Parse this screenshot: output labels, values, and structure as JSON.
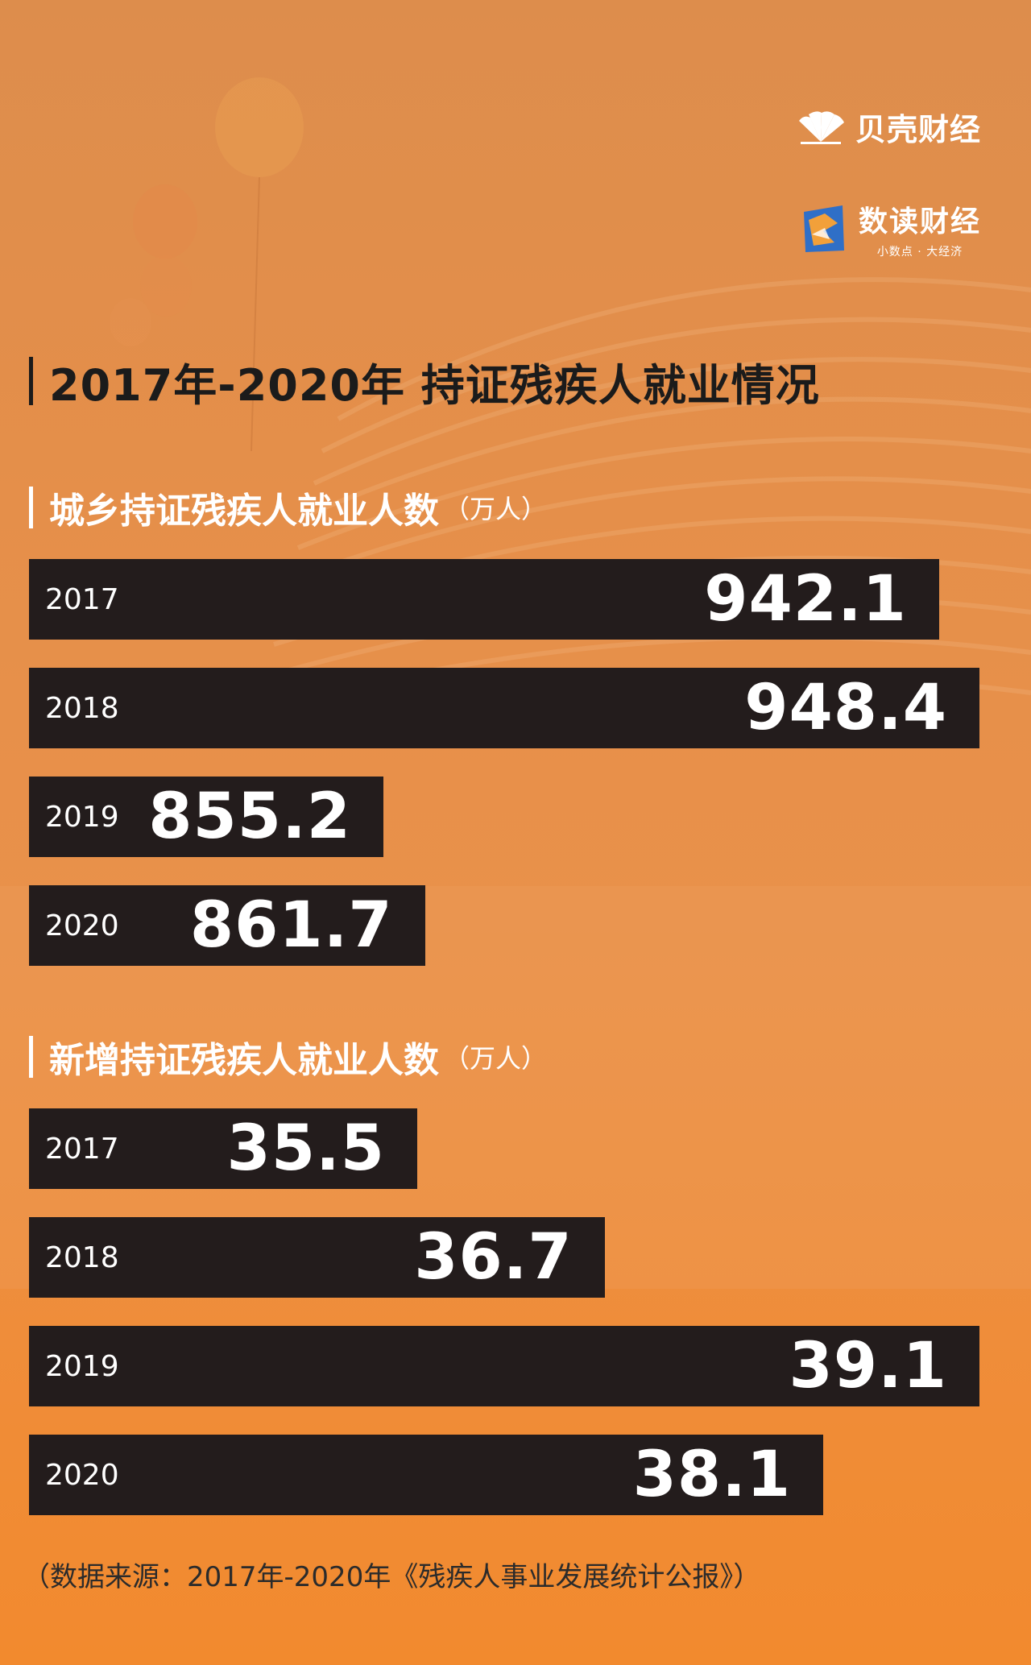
{
  "brand": {
    "logo1_name": "贝壳财经",
    "logo2_name": "数读财经",
    "logo2_sub": "小数点 · 大经济"
  },
  "title": "2017年-2020年 持证残疾人就业情况",
  "chart_data": [
    {
      "type": "bar",
      "title": "城乡持证残疾人就业人数",
      "unit": "（万人）",
      "categories": [
        "2017",
        "2018",
        "2019",
        "2020"
      ],
      "values": [
        942.1,
        948.4,
        855.2,
        861.7
      ],
      "value_labels": [
        "942.1",
        "948.4",
        "855.2",
        "861.7"
      ]
    },
    {
      "type": "bar",
      "title": "新增持证残疾人就业人数",
      "unit": "（万人）",
      "categories": [
        "2017",
        "2018",
        "2019",
        "2020"
      ],
      "values": [
        35.5,
        36.7,
        39.1,
        38.1
      ],
      "value_labels": [
        "35.5",
        "36.7",
        "39.1",
        "38.1"
      ]
    }
  ],
  "source": "（数据来源：2017年-2020年《残疾人事业发展统计公报》）",
  "colors": {
    "bar": "#231c1c",
    "background": "#e9914a",
    "text_light": "#ffffff",
    "text_dark": "#1b1b1b"
  }
}
